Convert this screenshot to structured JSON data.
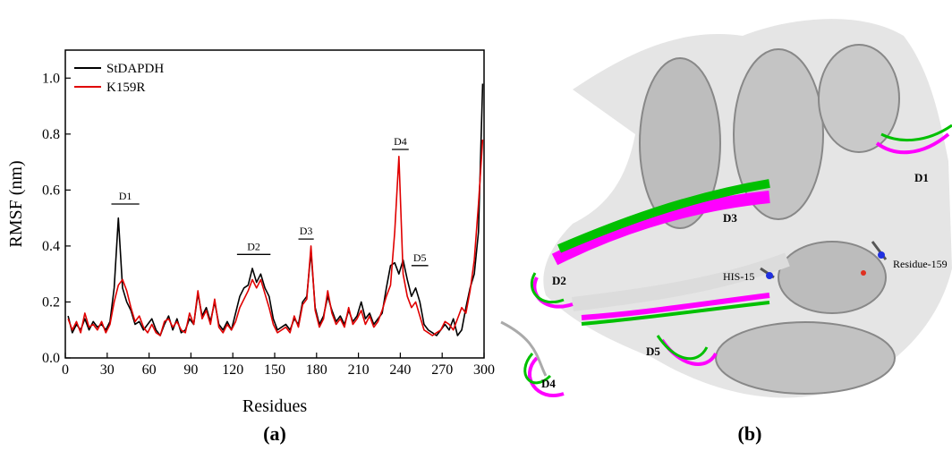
{
  "chart_data": {
    "type": "line",
    "xlabel": "Residues",
    "ylabel": "RMSF (nm)",
    "panel_label": "(a)",
    "xlim": [
      0,
      300
    ],
    "ylim": [
      0,
      1.1
    ],
    "xticks": [
      0,
      30,
      60,
      90,
      120,
      150,
      180,
      210,
      240,
      270,
      300
    ],
    "yticks": [
      {
        "value": 0,
        "label": "0.0"
      },
      {
        "value": 0.2,
        "label": "0.2"
      },
      {
        "value": 0.4,
        "label": "0.4"
      },
      {
        "value": 0.6,
        "label": "0.6"
      },
      {
        "value": 0.8,
        "label": "0.8"
      },
      {
        "value": 1,
        "label": "1.0"
      }
    ],
    "legend": "upper left",
    "grid": false,
    "x": [
      2,
      5,
      8,
      11,
      14,
      17,
      20,
      23,
      26,
      29,
      32,
      35,
      38,
      41,
      44,
      47,
      50,
      53,
      56,
      59,
      62,
      65,
      68,
      71,
      74,
      77,
      80,
      83,
      86,
      89,
      92,
      95,
      98,
      101,
      104,
      107,
      110,
      113,
      116,
      119,
      122,
      125,
      128,
      131,
      134,
      137,
      140,
      143,
      146,
      149,
      152,
      155,
      158,
      161,
      164,
      167,
      170,
      173,
      176,
      179,
      182,
      185,
      188,
      191,
      194,
      197,
      200,
      203,
      206,
      209,
      212,
      215,
      218,
      221,
      224,
      227,
      230,
      233,
      236,
      239,
      242,
      245,
      248,
      251,
      254,
      257,
      260,
      263,
      266,
      269,
      272,
      275,
      278,
      281,
      284,
      287,
      290,
      293,
      296,
      299
    ],
    "series": [
      {
        "name": "StDAPDH",
        "color": "#000000",
        "values": [
          0.15,
          0.09,
          0.12,
          0.1,
          0.14,
          0.1,
          0.13,
          0.11,
          0.12,
          0.1,
          0.13,
          0.25,
          0.5,
          0.25,
          0.2,
          0.17,
          0.12,
          0.13,
          0.1,
          0.12,
          0.14,
          0.1,
          0.08,
          0.12,
          0.15,
          0.1,
          0.14,
          0.09,
          0.1,
          0.14,
          0.12,
          0.23,
          0.15,
          0.18,
          0.13,
          0.2,
          0.12,
          0.1,
          0.13,
          0.1,
          0.16,
          0.22,
          0.25,
          0.26,
          0.32,
          0.27,
          0.3,
          0.25,
          0.22,
          0.14,
          0.1,
          0.11,
          0.12,
          0.1,
          0.14,
          0.12,
          0.2,
          0.22,
          0.38,
          0.18,
          0.12,
          0.15,
          0.22,
          0.17,
          0.13,
          0.15,
          0.12,
          0.17,
          0.13,
          0.15,
          0.2,
          0.14,
          0.16,
          0.12,
          0.14,
          0.16,
          0.25,
          0.33,
          0.34,
          0.3,
          0.35,
          0.28,
          0.22,
          0.25,
          0.2,
          0.12,
          0.1,
          0.09,
          0.08,
          0.1,
          0.12,
          0.1,
          0.14,
          0.08,
          0.1,
          0.18,
          0.25,
          0.3,
          0.45,
          0.98
        ]
      },
      {
        "name": "K159R",
        "color": "#e00000",
        "values": [
          0.14,
          0.1,
          0.13,
          0.09,
          0.16,
          0.11,
          0.12,
          0.1,
          0.13,
          0.09,
          0.12,
          0.2,
          0.26,
          0.28,
          0.24,
          0.18,
          0.13,
          0.15,
          0.11,
          0.09,
          0.12,
          0.09,
          0.08,
          0.13,
          0.14,
          0.11,
          0.13,
          0.1,
          0.09,
          0.16,
          0.12,
          0.24,
          0.14,
          0.17,
          0.12,
          0.21,
          0.11,
          0.09,
          0.12,
          0.1,
          0.13,
          0.18,
          0.21,
          0.24,
          0.28,
          0.25,
          0.28,
          0.23,
          0.18,
          0.12,
          0.09,
          0.1,
          0.11,
          0.09,
          0.15,
          0.11,
          0.19,
          0.21,
          0.4,
          0.17,
          0.11,
          0.14,
          0.24,
          0.16,
          0.12,
          0.14,
          0.11,
          0.18,
          0.12,
          0.14,
          0.17,
          0.12,
          0.15,
          0.11,
          0.13,
          0.17,
          0.22,
          0.26,
          0.45,
          0.72,
          0.3,
          0.22,
          0.18,
          0.2,
          0.15,
          0.1,
          0.09,
          0.08,
          0.09,
          0.1,
          0.13,
          0.12,
          0.1,
          0.14,
          0.18,
          0.16,
          0.24,
          0.35,
          0.55,
          0.78
        ]
      }
    ],
    "annotations": [
      {
        "text": "D1",
        "x": [
          33,
          53
        ],
        "y": 0.55
      },
      {
        "text": "D2",
        "x": [
          123,
          147
        ],
        "y": 0.37
      },
      {
        "text": "D3",
        "x": [
          167,
          178
        ],
        "y": 0.425
      },
      {
        "text": "D4",
        "x": [
          234,
          246
        ],
        "y": 0.745
      },
      {
        "text": "D5",
        "x": [
          248,
          260
        ],
        "y": 0.33
      }
    ]
  },
  "structure": {
    "panel_label": "(b)",
    "labels": [
      "D1",
      "D2",
      "D3",
      "D4",
      "D5",
      "HIS-15",
      "Residue-159"
    ]
  }
}
